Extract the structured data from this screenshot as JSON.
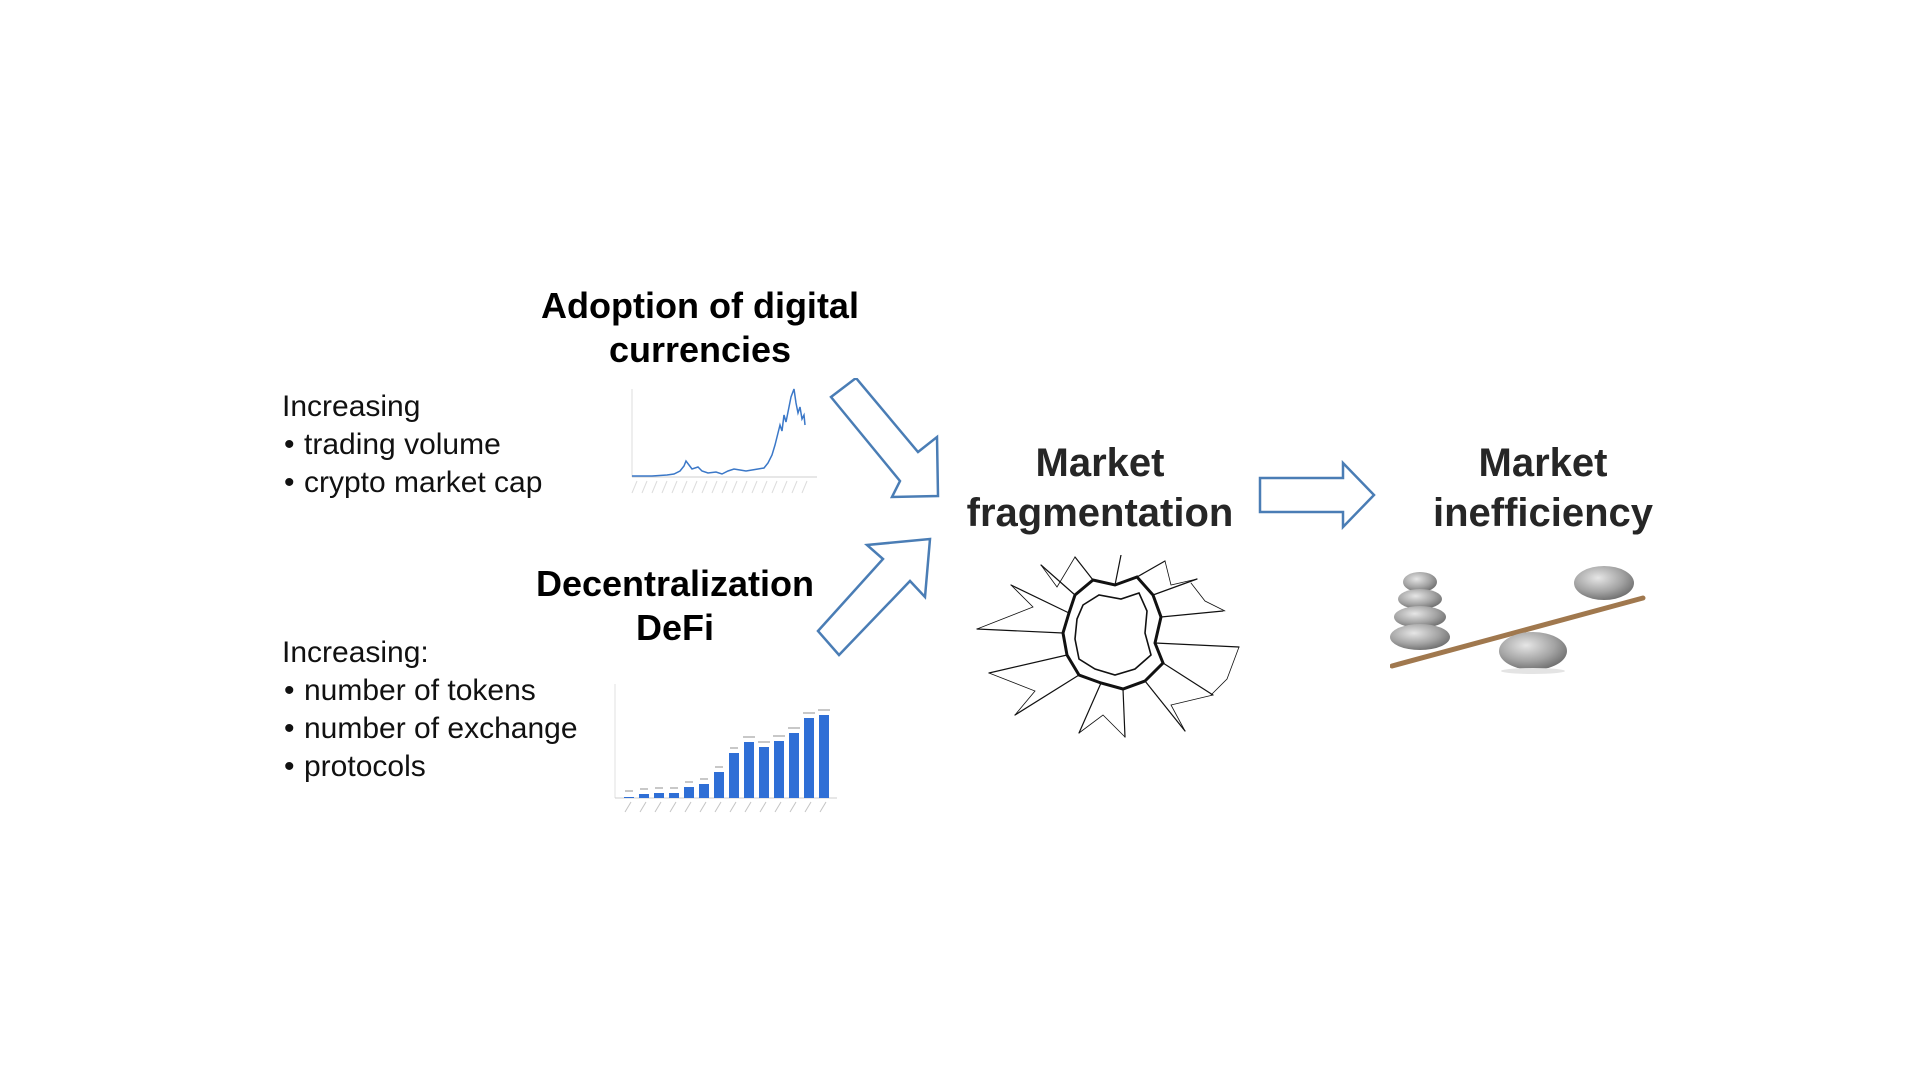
{
  "diagram": {
    "adoption": {
      "title_line1": "Adoption of digital",
      "title_line2": "currencies",
      "intro": "Increasing",
      "bullets": [
        "trading volume",
        "crypto market cap"
      ]
    },
    "decentralization": {
      "title_line1": "Decentralization",
      "title_line2": "DeFi",
      "intro": "Increasing:",
      "bullets": [
        "number of tokens",
        "number of exchange",
        "protocols"
      ]
    },
    "fragmentation": {
      "line1": "Market",
      "line2": "fragmentation"
    },
    "inefficiency": {
      "line1": "Market",
      "line2": "inefficiency"
    },
    "colors": {
      "arrow_stroke": "#4a7db5",
      "line_chart": "#3b78c8",
      "bar_fill": "#2f6fd6",
      "heading_dark": "#262626"
    },
    "icons": {
      "fragmentation_image": "shattered-glass-icon",
      "inefficiency_image": "unbalanced-stones-icon"
    }
  }
}
